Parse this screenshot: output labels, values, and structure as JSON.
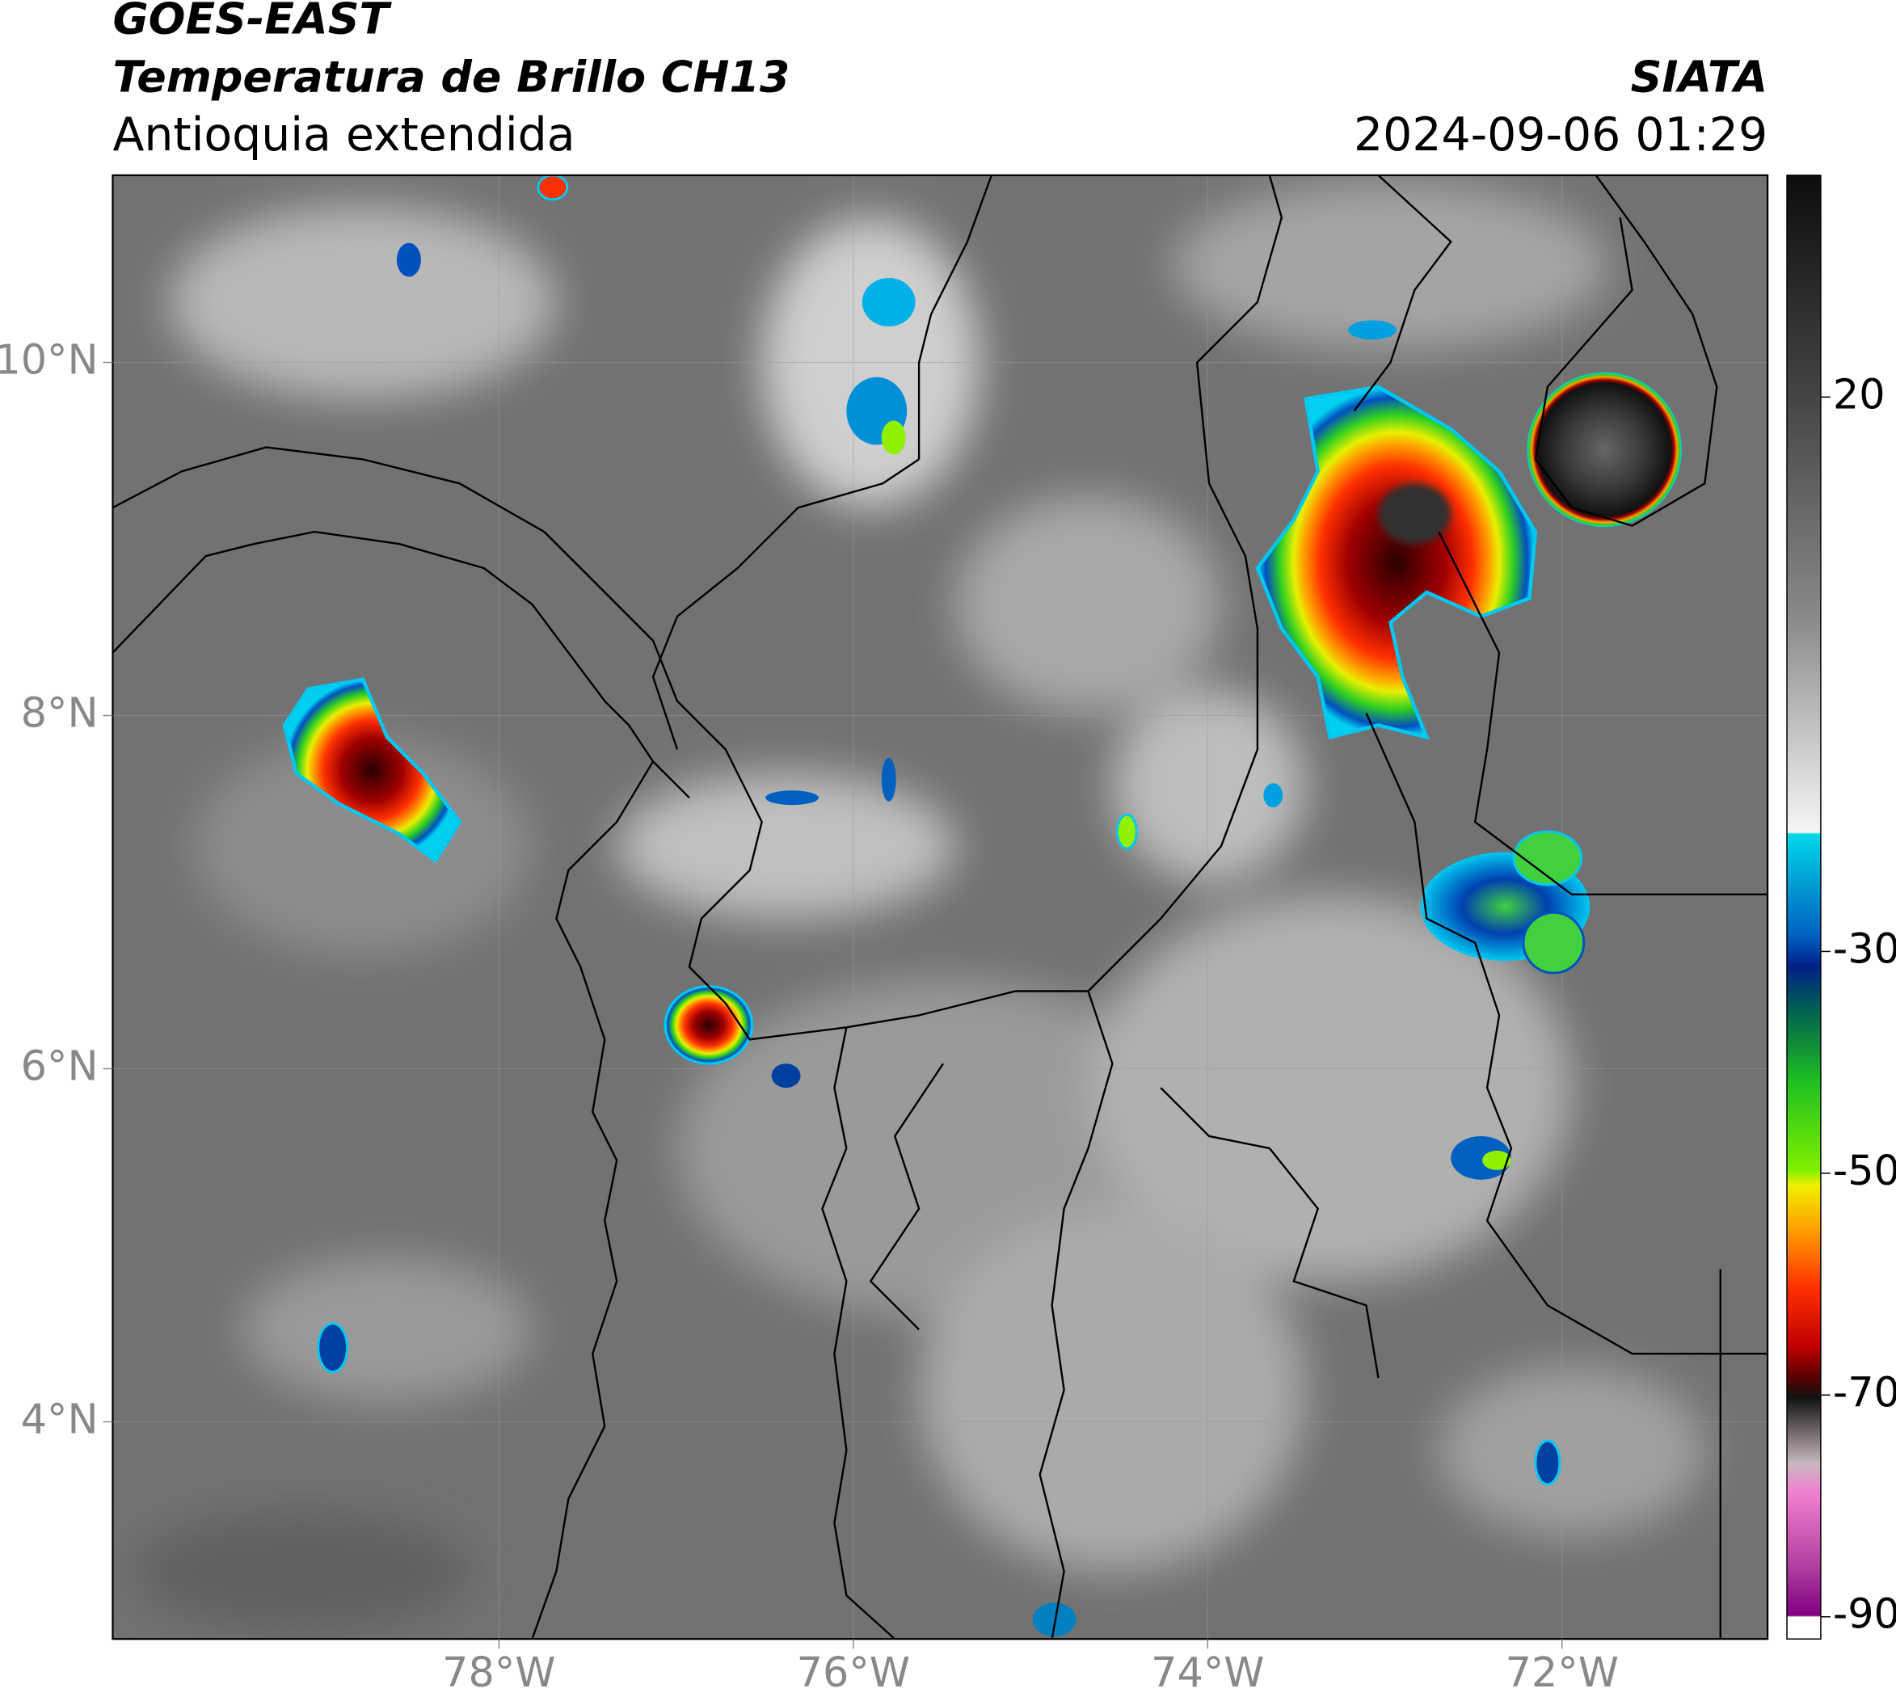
{
  "header": {
    "title_line1": "GOES-EAST",
    "title_line2": "Temperatura de Brillo CH13",
    "subtitle": "Antioquia extendida",
    "source": "SIATA",
    "timestamp": "2024-09-06 01:29"
  },
  "map": {
    "lon_range": [
      -80.18,
      -70.84
    ],
    "lat_range": [
      2.77,
      11.06
    ],
    "lon_ticks": [
      {
        "value": -78,
        "label": "78°W"
      },
      {
        "value": -76,
        "label": "76°W"
      },
      {
        "value": -74,
        "label": "74°W"
      },
      {
        "value": -72,
        "label": "72°W"
      }
    ],
    "lat_ticks": [
      {
        "value": 10,
        "label": "10°N"
      },
      {
        "value": 8,
        "label": "8°N"
      },
      {
        "value": 6,
        "label": "6°N"
      },
      {
        "value": 4,
        "label": "4°N"
      }
    ]
  },
  "colorbar": {
    "range": [
      -92,
      40
    ],
    "ticks": [
      20,
      -30,
      -50,
      -70,
      -90
    ]
  }
}
